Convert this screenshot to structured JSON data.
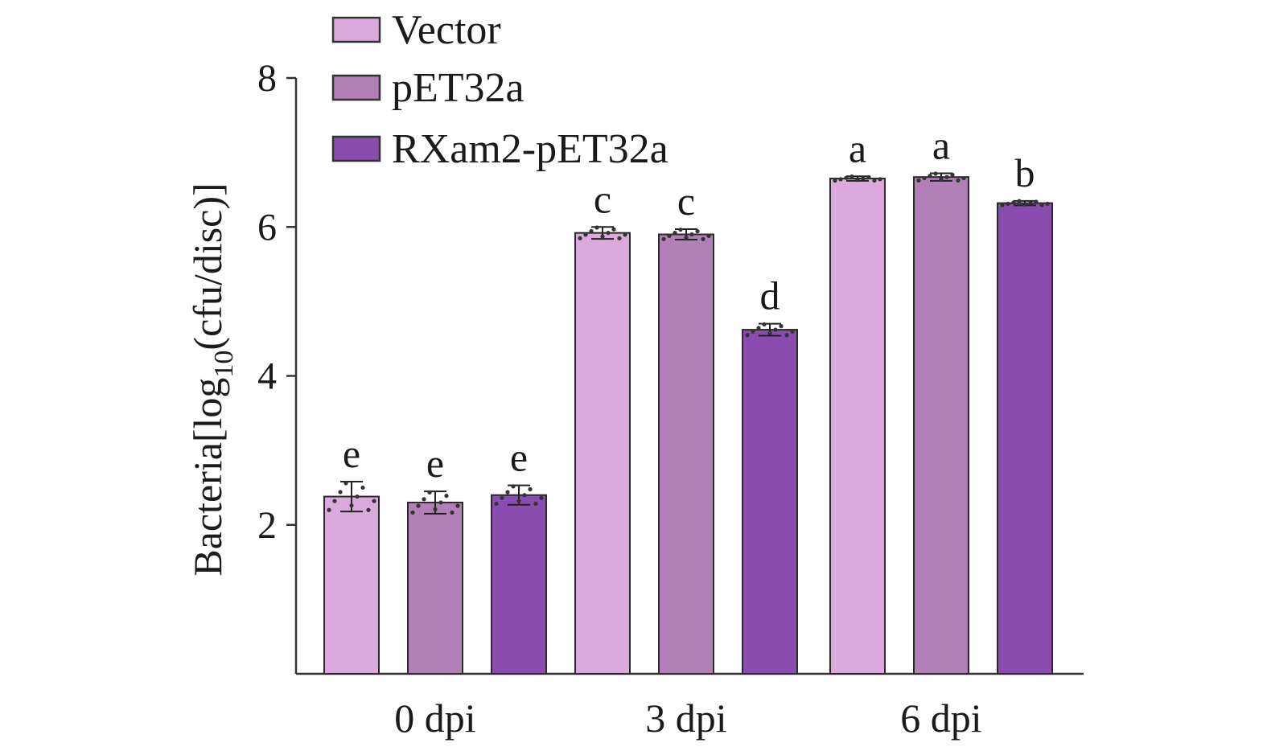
{
  "chart_data": {
    "type": "bar",
    "categories": [
      "0 dpi",
      "3 dpi",
      "6 dpi"
    ],
    "series": [
      {
        "name": "Vector",
        "color": "#dba9dc",
        "values": [
          2.38,
          5.92,
          6.65
        ],
        "errors": [
          0.2,
          0.08,
          0.03
        ],
        "labels": [
          "e",
          "c",
          "a"
        ]
      },
      {
        "name": "pET32a",
        "color": "#b27fb7",
        "values": [
          2.3,
          5.9,
          6.67
        ],
        "errors": [
          0.15,
          0.07,
          0.05
        ],
        "labels": [
          "e",
          "c",
          "a"
        ]
      },
      {
        "name": "RXam2-pET32a",
        "color": "#8a4cae",
        "values": [
          2.4,
          4.62,
          6.32
        ],
        "errors": [
          0.13,
          0.08,
          0.03
        ],
        "labels": [
          "e",
          "d",
          "b"
        ]
      }
    ],
    "ylabel": {
      "prefix": "Bacteria[log",
      "subscript": "10",
      "suffix": "(cfu/disc)]"
    },
    "ylim": [
      0,
      8
    ],
    "yticks": [
      2,
      4,
      6,
      8
    ],
    "legend_position": "top-left",
    "grid": false
  }
}
